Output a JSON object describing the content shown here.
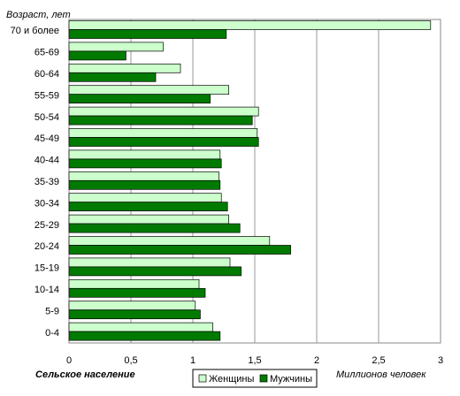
{
  "chart_data": {
    "type": "bar",
    "orientation": "horizontal",
    "ylabel": "Возраст, лет",
    "xlabel": "Миллионов человек",
    "caption": "Сельское население",
    "xlim": [
      0,
      3
    ],
    "xticks": [
      "0",
      "0,5",
      "1",
      "1,5",
      "2",
      "2,5",
      "3"
    ],
    "grid": "vertical",
    "legend_position": "bottom-center",
    "categories": [
      "70 и более",
      "65-69",
      "60-64",
      "55-59",
      "50-54",
      "45-49",
      "40-44",
      "35-39",
      "30-34",
      "25-29",
      "20-24",
      "15-19",
      "10-14",
      "5-9",
      "0-4"
    ],
    "series": [
      {
        "name": "Женщины",
        "color": "#ccffcc",
        "values": [
          2.92,
          0.76,
          0.9,
          1.29,
          1.53,
          1.52,
          1.22,
          1.21,
          1.23,
          1.29,
          1.62,
          1.3,
          1.05,
          1.02,
          1.16
        ]
      },
      {
        "name": "Мужчины",
        "color": "#007a00",
        "values": [
          1.27,
          0.46,
          0.7,
          1.14,
          1.48,
          1.53,
          1.23,
          1.22,
          1.28,
          1.38,
          1.79,
          1.39,
          1.1,
          1.06,
          1.22
        ]
      }
    ]
  }
}
